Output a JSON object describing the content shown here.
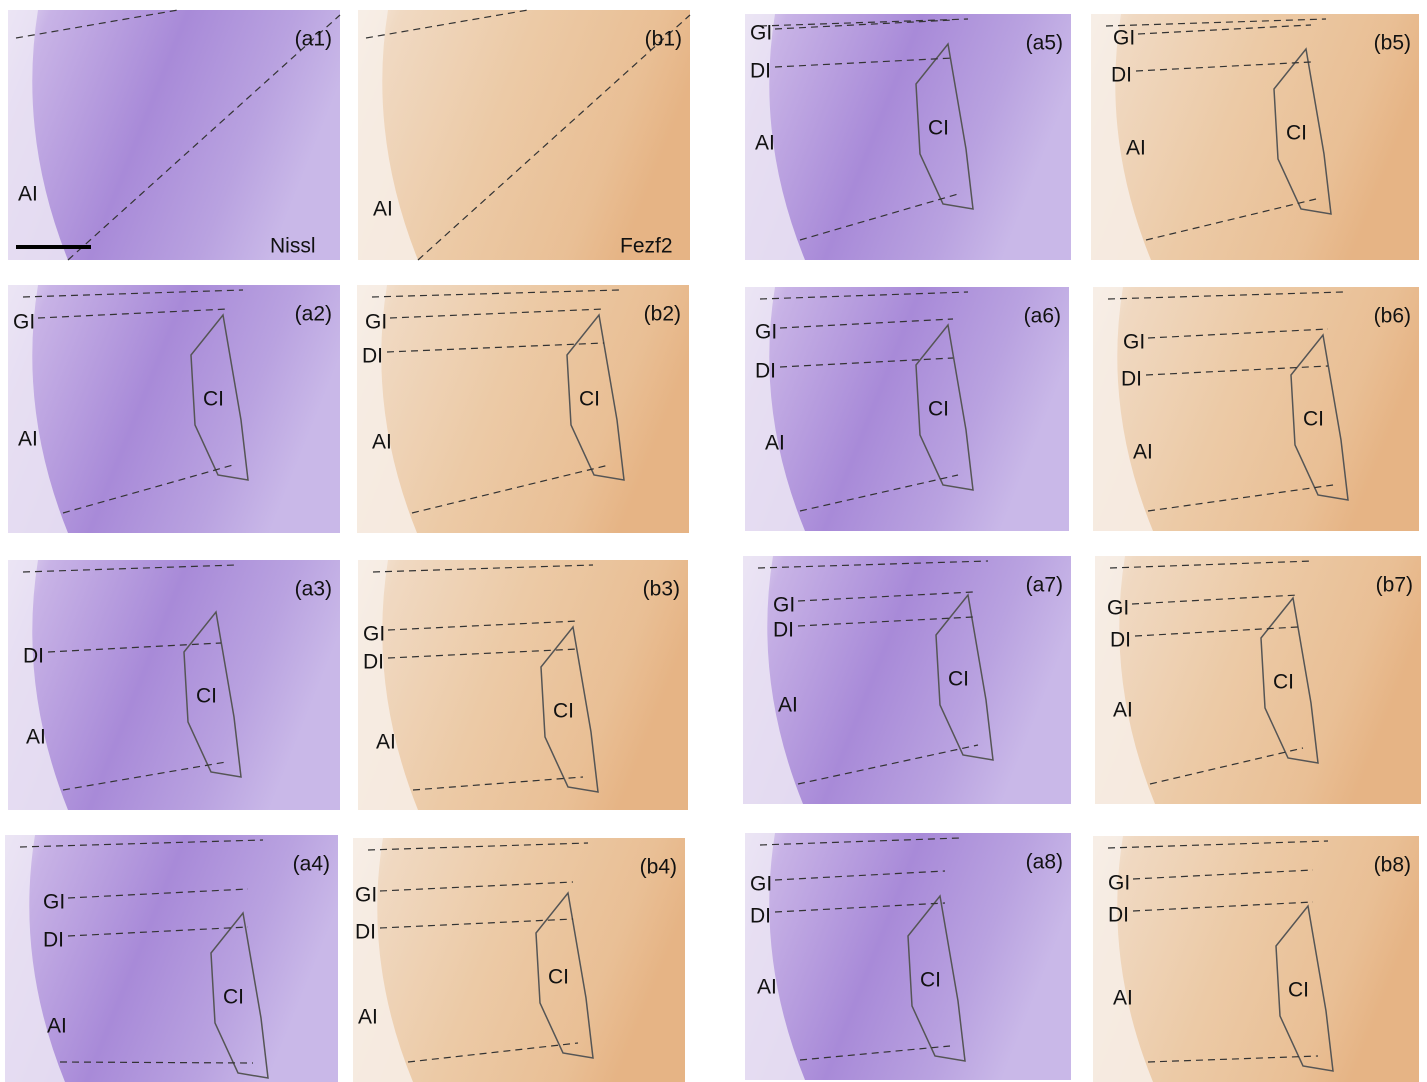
{
  "panels": [
    {
      "id": "(a1)",
      "labels": [
        "AI",
        "Nissl"
      ]
    },
    {
      "id": "(b1)",
      "labels": [
        "AI",
        "Fezf2"
      ]
    },
    {
      "id": "(a5)",
      "labels": [
        "GI",
        "DI",
        "CI",
        "AI"
      ]
    },
    {
      "id": "(b5)",
      "labels": [
        "GI",
        "DI",
        "CI",
        "AI"
      ]
    },
    {
      "id": "(a2)",
      "labels": [
        "GI",
        "CI",
        "AI"
      ]
    },
    {
      "id": "(b2)",
      "labels": [
        "GI",
        "DI",
        "CI",
        "AI"
      ]
    },
    {
      "id": "(a6)",
      "labels": [
        "GI",
        "DI",
        "CI",
        "AI"
      ]
    },
    {
      "id": "(b6)",
      "labels": [
        "GI",
        "DI",
        "CI",
        "AI"
      ]
    },
    {
      "id": "(a3)",
      "labels": [
        "DI",
        "CI",
        "AI"
      ]
    },
    {
      "id": "(b3)",
      "labels": [
        "GI",
        "DI",
        "CI",
        "AI"
      ]
    },
    {
      "id": "(a7)",
      "labels": [
        "GI",
        "DI",
        "CI",
        "AI"
      ]
    },
    {
      "id": "(b7)",
      "labels": [
        "GI",
        "DI",
        "CI",
        "AI"
      ]
    },
    {
      "id": "(a4)",
      "labels": [
        "GI",
        "DI",
        "CI",
        "AI"
      ]
    },
    {
      "id": "(b4)",
      "labels": [
        "GI",
        "DI",
        "CI",
        "AI"
      ]
    },
    {
      "id": "(a8)",
      "labels": [
        "GI",
        "DI",
        "CI",
        "AI"
      ]
    },
    {
      "id": "(b8)",
      "labels": [
        "GI",
        "DI",
        "CI",
        "AI"
      ]
    }
  ]
}
